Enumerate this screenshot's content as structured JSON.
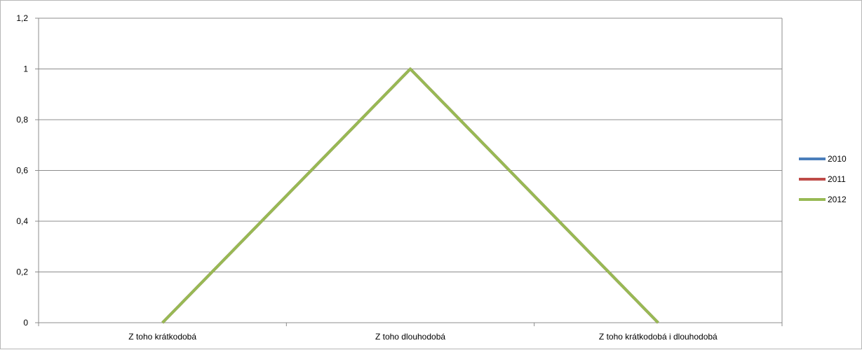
{
  "chart_data": {
    "type": "line",
    "title": "",
    "xlabel": "",
    "ylabel": "",
    "categories": [
      "Z toho krátkodobá",
      "Z toho dlouhodobá",
      "Z toho krátkodobá i dlouhodobá"
    ],
    "y_ticks": [
      "0",
      "0,2",
      "0,4",
      "0,6",
      "0,8",
      "1",
      "1,2"
    ],
    "ylim": [
      0,
      1.2
    ],
    "grid": "horizontal",
    "legend_position": "right",
    "series": [
      {
        "name": "2010",
        "color": "#4a7ebb",
        "values": [
          0,
          1,
          0
        ]
      },
      {
        "name": "2011",
        "color": "#be4b48",
        "values": [
          0,
          1,
          0
        ]
      },
      {
        "name": "2012",
        "color": "#98b954",
        "values": [
          0,
          1,
          0
        ]
      }
    ]
  }
}
